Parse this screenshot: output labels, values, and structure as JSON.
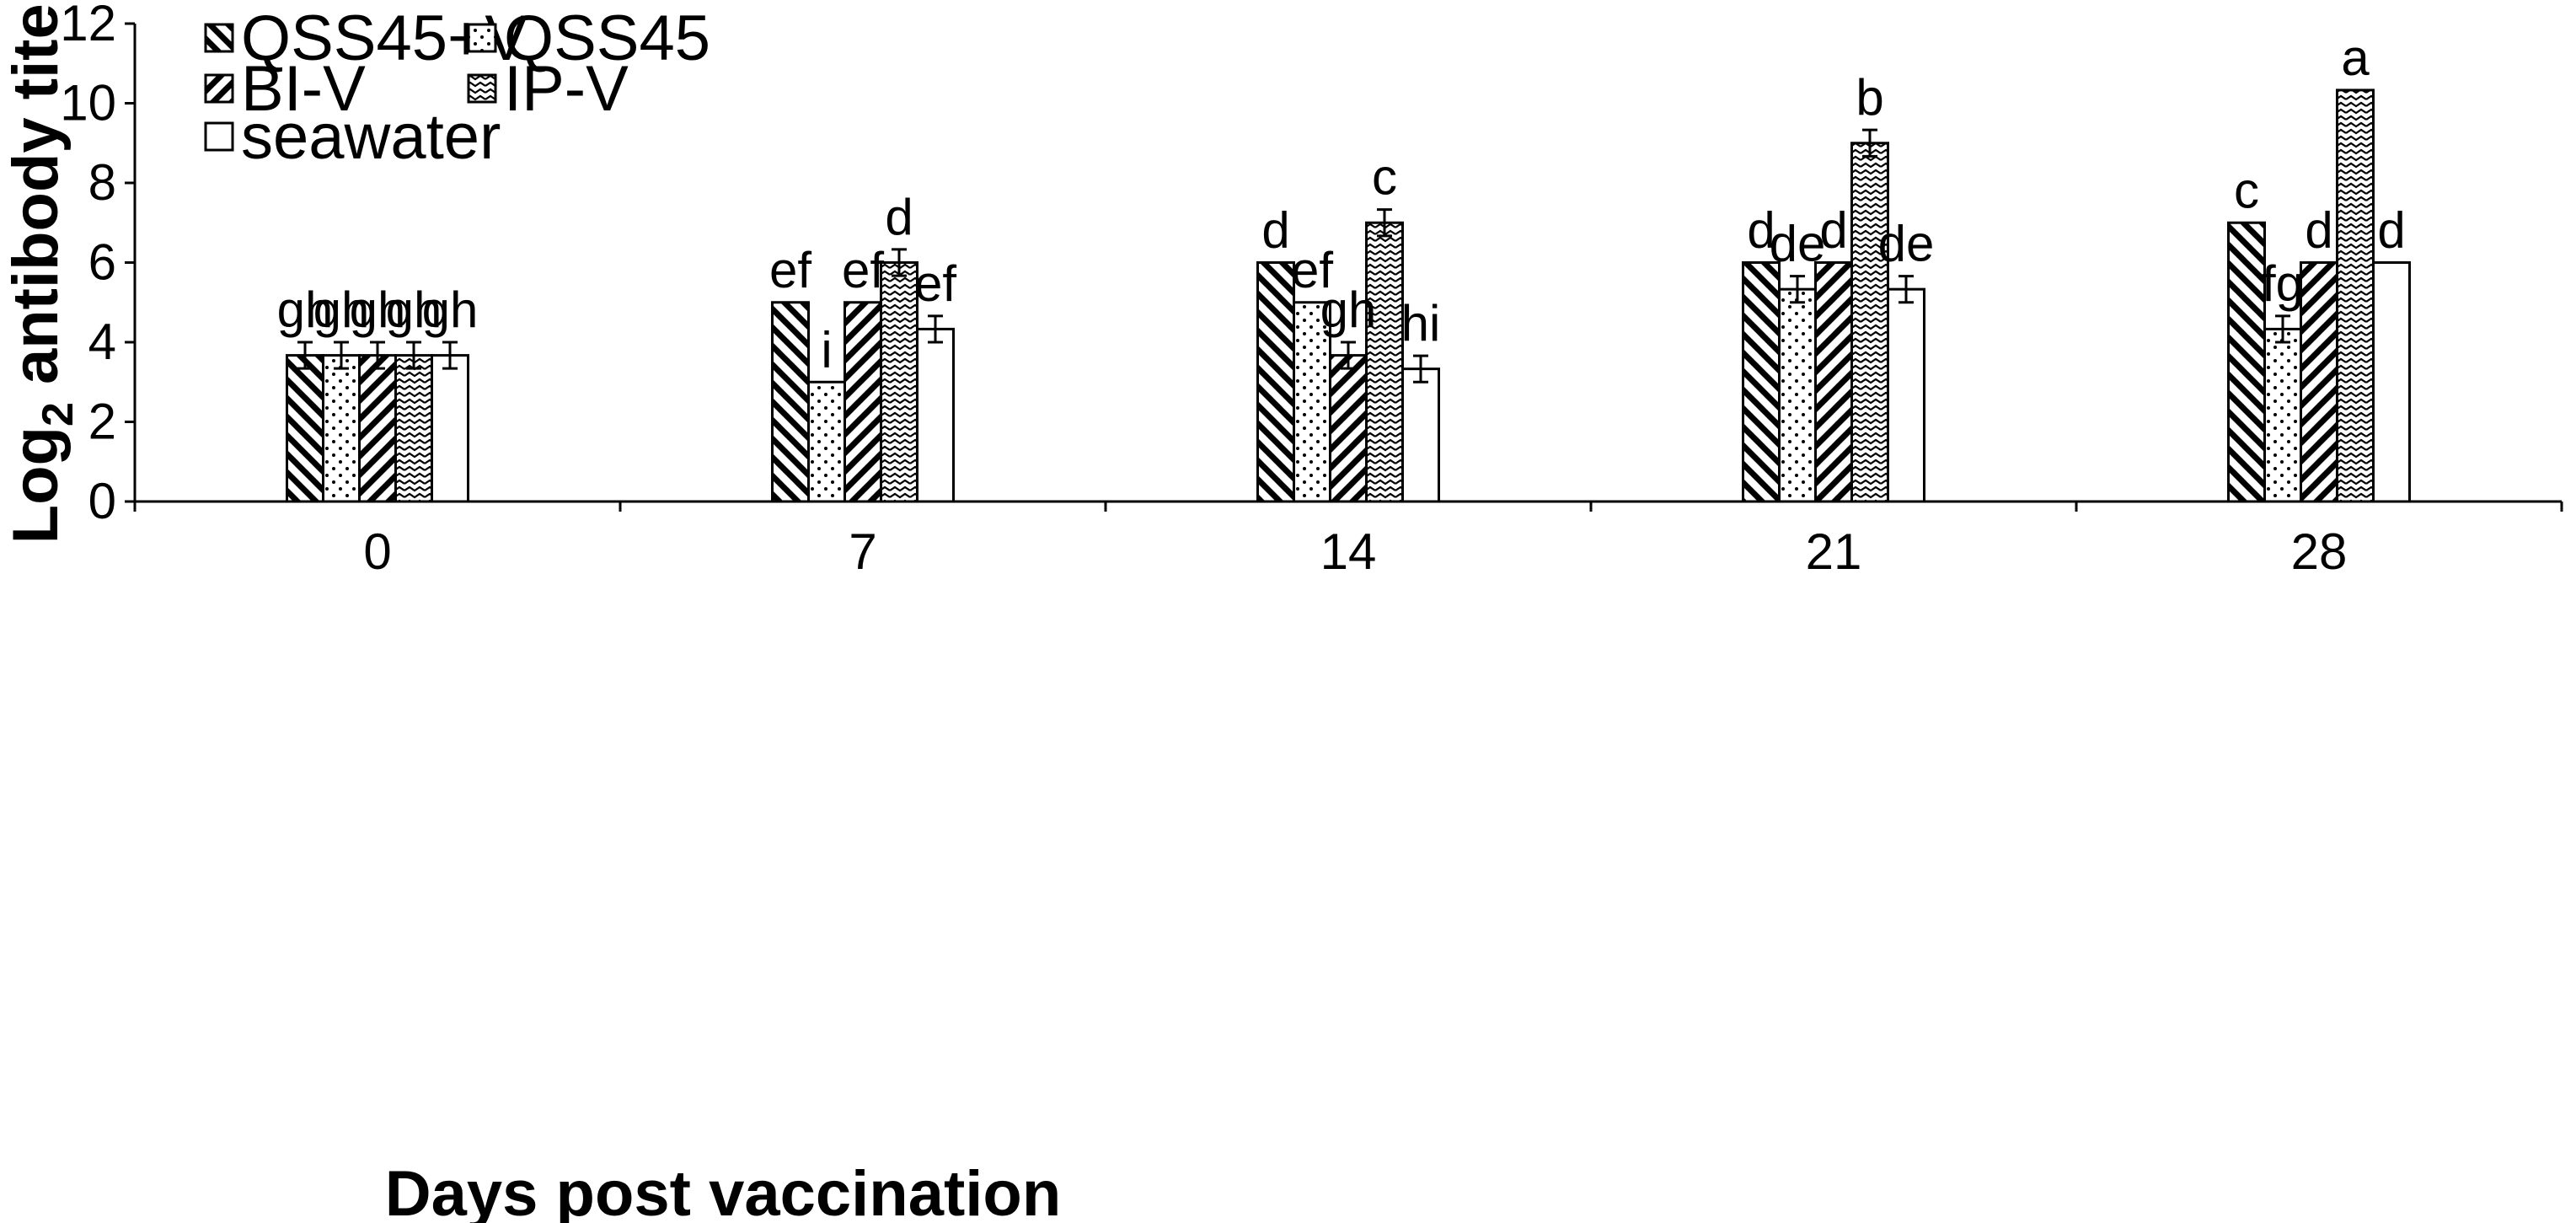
{
  "chart_data": {
    "type": "bar",
    "title": "",
    "xlabel": "Days post vaccination",
    "ylabel_main": "Log",
    "ylabel_sub": "2",
    "ylabel_rest": " antibody titer",
    "ylim": [
      0,
      12
    ],
    "yticks": [
      0,
      2,
      4,
      6,
      8,
      10,
      12
    ],
    "categories": [
      "0",
      "7",
      "14",
      "21",
      "28"
    ],
    "series": [
      {
        "name": "QSS45+V",
        "pattern": "wide-downward-diagonal",
        "values": [
          3.67,
          5,
          6,
          6,
          7
        ],
        "errors": [
          0.33,
          0,
          0,
          0,
          0
        ],
        "labels": [
          "gh",
          "ef",
          "d",
          "d",
          "c"
        ]
      },
      {
        "name": "QSS45",
        "pattern": "dots",
        "values": [
          3.67,
          3,
          5,
          5.33,
          4.33
        ],
        "errors": [
          0.33,
          0,
          0,
          0.33,
          0.33
        ],
        "labels": [
          "gh",
          "i",
          "ef",
          "de",
          "fg"
        ]
      },
      {
        "name": "BI-V",
        "pattern": "wide-upward-diagonal",
        "values": [
          3.67,
          5,
          3.67,
          6,
          6
        ],
        "errors": [
          0.33,
          0,
          0.33,
          0,
          0
        ],
        "labels": [
          "gh",
          "ef",
          "gh",
          "d",
          "d"
        ]
      },
      {
        "name": "IP-V",
        "pattern": "zigzag",
        "values": [
          3.67,
          6,
          7,
          9,
          10.33
        ],
        "errors": [
          0.33,
          0.33,
          0.33,
          0.33,
          0
        ],
        "labels": [
          "gh",
          "d",
          "c",
          "b",
          "a"
        ]
      },
      {
        "name": "seawater",
        "pattern": "none",
        "values": [
          3.67,
          4.33,
          3.33,
          5.33,
          6
        ],
        "errors": [
          0.33,
          0.33,
          0.33,
          0.33,
          0
        ],
        "labels": [
          "gh",
          "ef",
          "hi",
          "de",
          "d"
        ]
      }
    ],
    "legend": {
      "placement": "top-left",
      "columns": 2
    }
  }
}
